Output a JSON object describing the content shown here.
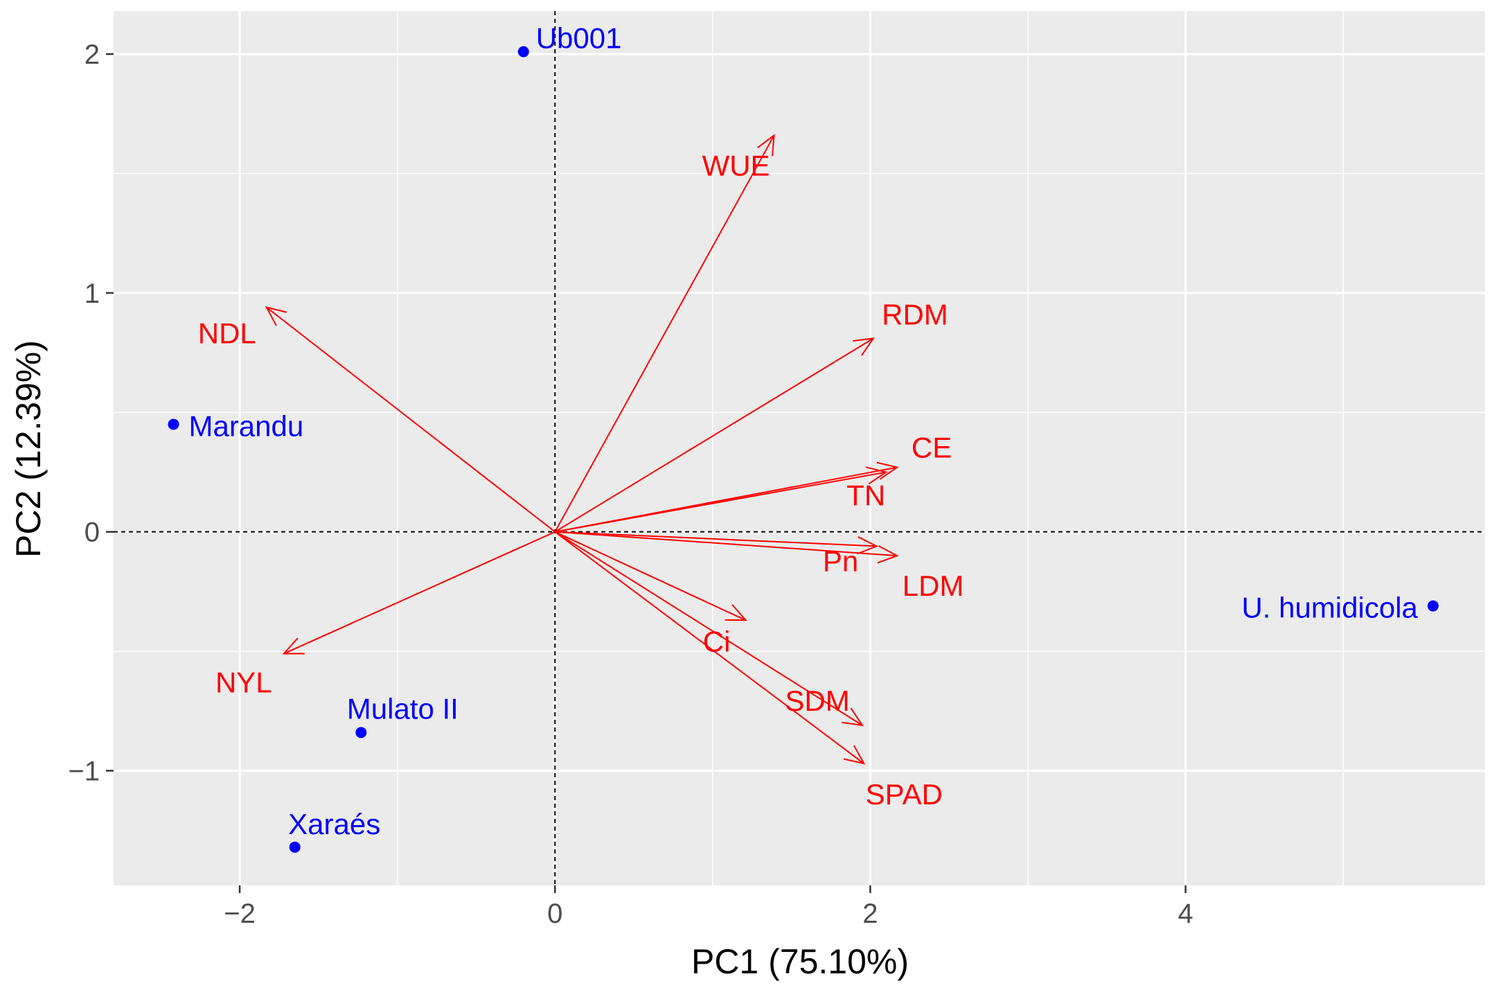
{
  "chart_data": {
    "type": "scatter",
    "subtype": "pca-biplot",
    "xlabel": "PC1 (75.10%)",
    "ylabel": "PC2 (12.39%)",
    "xlim": [
      -2.8,
      5.9
    ],
    "ylim": [
      -1.48,
      2.18
    ],
    "x_ticks": [
      -2,
      0,
      2,
      4
    ],
    "x_tick_labels": [
      "−2",
      "0",
      "2",
      "4"
    ],
    "y_ticks": [
      -1,
      0,
      1,
      2
    ],
    "y_tick_labels": [
      "−1",
      "0",
      "1",
      "2"
    ],
    "reference_lines": {
      "x": 0,
      "y": 0,
      "style": "dashed"
    },
    "grid": true,
    "colors": {
      "panel": "#ebebeb",
      "grid": "#ffffff",
      "points": "#0000ff",
      "vectors": "#ff0000",
      "axis_text": "#4d4d4d",
      "axis_title": "#000000"
    },
    "points": [
      {
        "label": "Ub001",
        "x": -0.2,
        "y": 2.01
      },
      {
        "label": "Marandu",
        "x": -2.42,
        "y": 0.45
      },
      {
        "label": "Mulato II",
        "x": -1.23,
        "y": -0.84
      },
      {
        "label": "Xaraés",
        "x": -1.65,
        "y": -1.32
      },
      {
        "label": "U. humidicola",
        "x": 5.57,
        "y": -0.31
      }
    ],
    "vectors": [
      {
        "label": "WUE",
        "x": 1.39,
        "y": 1.66
      },
      {
        "label": "NDL",
        "x": -1.83,
        "y": 0.94
      },
      {
        "label": "RDM",
        "x": 2.02,
        "y": 0.81
      },
      {
        "label": "CE",
        "x": 2.17,
        "y": 0.27
      },
      {
        "label": "TN",
        "x": 2.1,
        "y": 0.25
      },
      {
        "label": "Pn",
        "x": 2.04,
        "y": -0.06
      },
      {
        "label": "LDM",
        "x": 2.17,
        "y": -0.1
      },
      {
        "label": "Ci",
        "x": 1.21,
        "y": -0.37
      },
      {
        "label": "SDM",
        "x": 1.95,
        "y": -0.81
      },
      {
        "label": "SPAD",
        "x": 1.96,
        "y": -0.97
      },
      {
        "label": "NYL",
        "x": -1.72,
        "y": -0.51
      }
    ]
  }
}
